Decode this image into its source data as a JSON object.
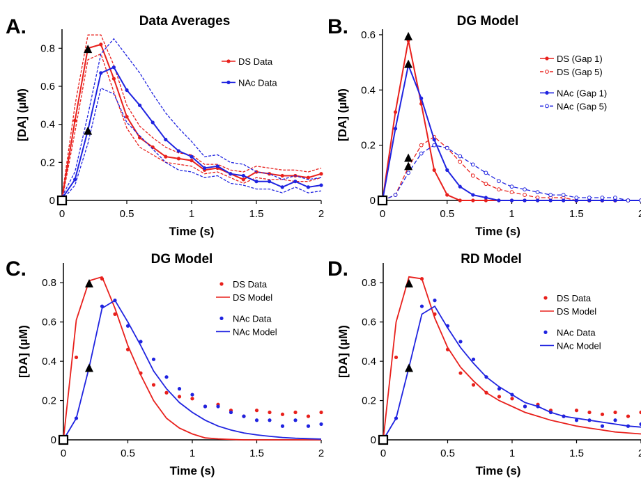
{
  "chart_data": [
    {
      "panel": "A.",
      "type": "line",
      "title": "Data Averages",
      "xlabel": "Time (s)",
      "ylabel": "[DA] (µM)",
      "xlim": [
        0,
        2
      ],
      "ylim": [
        0,
        0.9
      ],
      "xticks": [
        0,
        0.5,
        1,
        1.5,
        2
      ],
      "xtick_labels": [
        "0",
        "0.5",
        "1",
        "1.5",
        "2"
      ],
      "yticks": [
        0,
        0.2,
        0.4,
        0.6,
        0.8
      ],
      "ytick_labels": [
        "0",
        "0.2",
        "0.4",
        "0.6",
        "0.8"
      ],
      "grid": false,
      "legend_position": "top-right",
      "series": [
        {
          "name": "DS Data",
          "color": "#e8201c",
          "style": "solid-marker",
          "x": [
            0,
            0.1,
            0.2,
            0.3,
            0.4,
            0.5,
            0.6,
            0.7,
            0.8,
            0.9,
            1.0,
            1.1,
            1.2,
            1.3,
            1.4,
            1.5,
            1.6,
            1.7,
            1.8,
            1.9,
            2.0
          ],
          "y": [
            0.01,
            0.42,
            0.8,
            0.82,
            0.64,
            0.44,
            0.33,
            0.28,
            0.23,
            0.22,
            0.21,
            0.16,
            0.17,
            0.14,
            0.11,
            0.15,
            0.14,
            0.13,
            0.13,
            0.12,
            0.14
          ]
        },
        {
          "name": "DS upper",
          "color": "#e8201c",
          "style": "dashed",
          "x": [
            0,
            0.1,
            0.2,
            0.3,
            0.4,
            0.5,
            0.6,
            0.7,
            0.8,
            0.9,
            1.0,
            1.1,
            1.2,
            1.3,
            1.4,
            1.5,
            1.6,
            1.7,
            1.8,
            1.9,
            2.0
          ],
          "y": [
            0.02,
            0.5,
            0.87,
            0.87,
            0.71,
            0.5,
            0.39,
            0.33,
            0.28,
            0.25,
            0.24,
            0.19,
            0.19,
            0.16,
            0.15,
            0.18,
            0.17,
            0.16,
            0.16,
            0.15,
            0.17
          ]
        },
        {
          "name": "DS lower",
          "color": "#e8201c",
          "style": "dashed",
          "x": [
            0,
            0.1,
            0.2,
            0.3,
            0.4,
            0.5,
            0.6,
            0.7,
            0.8,
            0.9,
            1.0,
            1.1,
            1.2,
            1.3,
            1.4,
            1.5,
            1.6,
            1.7,
            1.8,
            1.9,
            2.0
          ],
          "y": [
            0.0,
            0.36,
            0.74,
            0.77,
            0.57,
            0.38,
            0.28,
            0.24,
            0.2,
            0.19,
            0.18,
            0.14,
            0.15,
            0.12,
            0.09,
            0.12,
            0.11,
            0.11,
            0.1,
            0.1,
            0.12
          ]
        },
        {
          "name": "NAc Data",
          "color": "#1f23e0",
          "style": "solid-marker",
          "x": [
            0,
            0.1,
            0.2,
            0.3,
            0.4,
            0.5,
            0.6,
            0.7,
            0.8,
            0.9,
            1.0,
            1.1,
            1.2,
            1.3,
            1.4,
            1.5,
            1.6,
            1.7,
            1.8,
            1.9,
            2.0
          ],
          "y": [
            0.01,
            0.11,
            0.37,
            0.67,
            0.7,
            0.58,
            0.5,
            0.41,
            0.32,
            0.26,
            0.23,
            0.17,
            0.18,
            0.14,
            0.13,
            0.1,
            0.1,
            0.07,
            0.1,
            0.07,
            0.08
          ]
        },
        {
          "name": "NAc upper",
          "color": "#1f23e0",
          "style": "dashed",
          "x": [
            0,
            0.1,
            0.2,
            0.3,
            0.4,
            0.5,
            0.6,
            0.7,
            0.8,
            0.9,
            1.0,
            1.1,
            1.2,
            1.3,
            1.4,
            1.5,
            1.6,
            1.7,
            1.8,
            1.9,
            2.0
          ],
          "y": [
            0.02,
            0.15,
            0.45,
            0.77,
            0.85,
            0.76,
            0.67,
            0.56,
            0.46,
            0.38,
            0.31,
            0.23,
            0.24,
            0.2,
            0.19,
            0.15,
            0.14,
            0.11,
            0.13,
            0.11,
            0.12
          ]
        },
        {
          "name": "NAc lower",
          "color": "#1f23e0",
          "style": "dashed",
          "x": [
            0,
            0.1,
            0.2,
            0.3,
            0.4,
            0.5,
            0.6,
            0.7,
            0.8,
            0.9,
            1.0,
            1.1,
            1.2,
            1.3,
            1.4,
            1.5,
            1.6,
            1.7,
            1.8,
            1.9,
            2.0
          ],
          "y": [
            0.0,
            0.08,
            0.3,
            0.59,
            0.56,
            0.41,
            0.34,
            0.27,
            0.2,
            0.16,
            0.15,
            0.12,
            0.13,
            0.09,
            0.08,
            0.06,
            0.06,
            0.04,
            0.07,
            0.04,
            0.05
          ]
        }
      ],
      "markers": [
        {
          "x": 0.2,
          "y": 0.79
        },
        {
          "x": 0.2,
          "y": 0.36
        }
      ],
      "origin_box": true
    },
    {
      "panel": "B.",
      "type": "line",
      "title": "DG Model",
      "xlabel": "Time (s)",
      "ylabel": "[DA] (µM)",
      "xlim": [
        0,
        2
      ],
      "ylim": [
        0,
        0.62
      ],
      "xticks": [
        0,
        0.5,
        1,
        1.5,
        2
      ],
      "xtick_labels": [
        "0",
        "0.5",
        "1",
        "1.5",
        "2"
      ],
      "yticks": [
        0,
        0.2,
        0.4,
        0.6
      ],
      "ytick_labels": [
        "0",
        "0.2",
        "0.4",
        "0.6"
      ],
      "grid": false,
      "legend_position": "top-right",
      "series": [
        {
          "name": "DS (Gap 1)",
          "color": "#e8201c",
          "style": "solid-marker",
          "x": [
            0,
            0.1,
            0.2,
            0.3,
            0.4,
            0.5,
            0.6,
            0.7,
            0.8,
            0.9,
            1.0,
            1.1,
            1.2,
            1.3,
            1.4,
            1.5,
            1.6,
            1.7,
            1.8,
            1.9,
            2.0
          ],
          "y": [
            0,
            0.32,
            0.58,
            0.35,
            0.11,
            0.02,
            0,
            0,
            0,
            0,
            0,
            0,
            0,
            0,
            0,
            0,
            0,
            0,
            0,
            0,
            0
          ]
        },
        {
          "name": "DS (Gap 5)",
          "color": "#e8201c",
          "style": "dashed-open",
          "x": [
            0,
            0.1,
            0.2,
            0.3,
            0.4,
            0.5,
            0.6,
            0.7,
            0.8,
            0.9,
            1.0,
            1.1,
            1.2,
            1.3,
            1.4,
            1.5,
            1.6,
            1.7,
            1.8,
            1.9,
            2.0
          ],
          "y": [
            0,
            0.02,
            0.12,
            0.2,
            0.23,
            0.19,
            0.14,
            0.09,
            0.06,
            0.04,
            0.03,
            0.02,
            0.01,
            0.01,
            0.01,
            0,
            0,
            0,
            0,
            0,
            0
          ]
        },
        {
          "name": "NAc (Gap 1)",
          "color": "#1f23e0",
          "style": "solid-marker",
          "x": [
            0,
            0.1,
            0.2,
            0.3,
            0.4,
            0.5,
            0.6,
            0.7,
            0.8,
            0.9,
            1.0,
            1.1,
            1.2,
            1.3,
            1.4,
            1.5,
            1.6,
            1.7,
            1.8,
            1.9,
            2.0
          ],
          "y": [
            0,
            0.26,
            0.49,
            0.37,
            0.22,
            0.11,
            0.05,
            0.02,
            0.01,
            0,
            0,
            0,
            0,
            0,
            0,
            0,
            0,
            0,
            0,
            0,
            0
          ]
        },
        {
          "name": "NAc (Gap 5)",
          "color": "#1f23e0",
          "style": "dashed-open",
          "x": [
            0,
            0.1,
            0.2,
            0.3,
            0.4,
            0.5,
            0.6,
            0.7,
            0.8,
            0.9,
            1.0,
            1.1,
            1.2,
            1.3,
            1.4,
            1.5,
            1.6,
            1.7,
            1.8,
            1.9,
            2.0
          ],
          "y": [
            0,
            0.02,
            0.1,
            0.17,
            0.2,
            0.19,
            0.16,
            0.13,
            0.1,
            0.07,
            0.05,
            0.04,
            0.03,
            0.02,
            0.02,
            0.01,
            0.01,
            0.01,
            0.01,
            0,
            0
          ]
        }
      ],
      "markers": [
        {
          "x": 0.2,
          "y": 0.59
        },
        {
          "x": 0.2,
          "y": 0.49
        },
        {
          "x": 0.2,
          "y": 0.15
        },
        {
          "x": 0.2,
          "y": 0.12
        }
      ],
      "origin_box": true
    },
    {
      "panel": "C.",
      "type": "scatter",
      "title": "DG Model",
      "xlabel": "Time (s)",
      "ylabel": "[DA] (µM)",
      "xlim": [
        0,
        2
      ],
      "ylim": [
        0,
        0.9
      ],
      "xticks": [
        0,
        0.5,
        1,
        1.5,
        2
      ],
      "xtick_labels": [
        "0",
        "0.5",
        "1",
        "1.5",
        "2"
      ],
      "yticks": [
        0,
        0.2,
        0.4,
        0.6,
        0.8
      ],
      "ytick_labels": [
        "0",
        "0.2",
        "0.4",
        "0.6",
        "0.8"
      ],
      "grid": false,
      "legend_position": "top-right",
      "series": [
        {
          "name": "DS Data",
          "color": "#e8201c",
          "style": "dots",
          "x": [
            0.1,
            0.2,
            0.3,
            0.4,
            0.5,
            0.6,
            0.7,
            0.8,
            0.9,
            1.0,
            1.1,
            1.2,
            1.3,
            1.4,
            1.5,
            1.6,
            1.7,
            1.8,
            1.9,
            2.0
          ],
          "y": [
            0.42,
            0.8,
            0.82,
            0.64,
            0.46,
            0.34,
            0.28,
            0.24,
            0.22,
            0.21,
            0.17,
            0.18,
            0.15,
            0.12,
            0.15,
            0.14,
            0.13,
            0.14,
            0.12,
            0.14
          ]
        },
        {
          "name": "DS Model",
          "color": "#e8201c",
          "style": "solid",
          "x": [
            0,
            0.1,
            0.2,
            0.3,
            0.4,
            0.5,
            0.6,
            0.7,
            0.8,
            0.9,
            1.0,
            1.1,
            1.2,
            1.3,
            1.4,
            1.5,
            1.6,
            1.7,
            1.8,
            1.9,
            2.0
          ],
          "y": [
            0,
            0.61,
            0.81,
            0.83,
            0.67,
            0.48,
            0.33,
            0.2,
            0.11,
            0.06,
            0.03,
            0.01,
            0.005,
            0.002,
            0,
            0,
            0,
            0,
            0,
            0,
            0
          ]
        },
        {
          "name": "NAc Data",
          "color": "#1f23e0",
          "style": "dots",
          "x": [
            0.1,
            0.2,
            0.3,
            0.4,
            0.5,
            0.6,
            0.7,
            0.8,
            0.9,
            1.0,
            1.1,
            1.2,
            1.3,
            1.4,
            1.5,
            1.6,
            1.7,
            1.8,
            1.9,
            2.0
          ],
          "y": [
            0.11,
            0.37,
            0.68,
            0.71,
            0.58,
            0.5,
            0.41,
            0.32,
            0.26,
            0.23,
            0.17,
            0.17,
            0.14,
            0.12,
            0.1,
            0.1,
            0.07,
            0.1,
            0.07,
            0.08
          ]
        },
        {
          "name": "NAc Model",
          "color": "#1f23e0",
          "style": "solid",
          "x": [
            0,
            0.1,
            0.2,
            0.3,
            0.4,
            0.5,
            0.6,
            0.7,
            0.8,
            0.9,
            1.0,
            1.1,
            1.2,
            1.3,
            1.4,
            1.5,
            1.6,
            1.7,
            1.8,
            1.9,
            2.0
          ],
          "y": [
            0,
            0.11,
            0.37,
            0.67,
            0.71,
            0.6,
            0.48,
            0.35,
            0.26,
            0.19,
            0.14,
            0.1,
            0.07,
            0.05,
            0.035,
            0.025,
            0.018,
            0.012,
            0.008,
            0.006,
            0.004
          ]
        }
      ],
      "markers": [
        {
          "x": 0.2,
          "y": 0.79
        },
        {
          "x": 0.2,
          "y": 0.36
        }
      ],
      "origin_box": true
    },
    {
      "panel": "D.",
      "type": "scatter",
      "title": "RD Model",
      "xlabel": "Time (s)",
      "ylabel": "[DA] (µM)",
      "xlim": [
        0,
        2
      ],
      "ylim": [
        0,
        0.9
      ],
      "xticks": [
        0,
        0.5,
        1,
        1.5,
        2
      ],
      "xtick_labels": [
        "0",
        "0.5",
        "1",
        "1.5",
        "2"
      ],
      "yticks": [
        0,
        0.2,
        0.4,
        0.6,
        0.8
      ],
      "ytick_labels": [
        "0",
        "0.2",
        "0.4",
        "0.6",
        "0.8"
      ],
      "grid": false,
      "legend_position": "top-right",
      "series": [
        {
          "name": "DS Data",
          "color": "#e8201c",
          "style": "dots",
          "x": [
            0.1,
            0.2,
            0.3,
            0.4,
            0.5,
            0.6,
            0.7,
            0.8,
            0.9,
            1.0,
            1.1,
            1.2,
            1.3,
            1.4,
            1.5,
            1.6,
            1.7,
            1.8,
            1.9,
            2.0
          ],
          "y": [
            0.42,
            0.8,
            0.82,
            0.64,
            0.46,
            0.34,
            0.28,
            0.24,
            0.22,
            0.21,
            0.17,
            0.18,
            0.15,
            0.12,
            0.15,
            0.14,
            0.13,
            0.14,
            0.12,
            0.14
          ]
        },
        {
          "name": "DS Model",
          "color": "#e8201c",
          "style": "solid",
          "x": [
            0,
            0.1,
            0.2,
            0.3,
            0.4,
            0.5,
            0.6,
            0.7,
            0.8,
            0.9,
            1.0,
            1.1,
            1.2,
            1.3,
            1.4,
            1.5,
            1.6,
            1.7,
            1.8,
            1.9,
            2.0
          ],
          "y": [
            0,
            0.6,
            0.83,
            0.82,
            0.62,
            0.47,
            0.37,
            0.3,
            0.24,
            0.2,
            0.17,
            0.14,
            0.12,
            0.1,
            0.085,
            0.07,
            0.06,
            0.05,
            0.04,
            0.035,
            0.03
          ]
        },
        {
          "name": "NAc Data",
          "color": "#1f23e0",
          "style": "dots",
          "x": [
            0.1,
            0.2,
            0.3,
            0.4,
            0.5,
            0.6,
            0.7,
            0.8,
            0.9,
            1.0,
            1.1,
            1.2,
            1.3,
            1.4,
            1.5,
            1.6,
            1.7,
            1.8,
            1.9,
            2.0
          ],
          "y": [
            0.11,
            0.37,
            0.68,
            0.71,
            0.58,
            0.5,
            0.41,
            0.32,
            0.26,
            0.23,
            0.17,
            0.17,
            0.14,
            0.12,
            0.1,
            0.1,
            0.07,
            0.1,
            0.07,
            0.08
          ]
        },
        {
          "name": "NAc Model",
          "color": "#1f23e0",
          "style": "solid",
          "x": [
            0,
            0.1,
            0.2,
            0.3,
            0.4,
            0.5,
            0.6,
            0.7,
            0.8,
            0.9,
            1.0,
            1.1,
            1.2,
            1.3,
            1.4,
            1.5,
            1.6,
            1.7,
            1.8,
            1.9,
            2.0
          ],
          "y": [
            0,
            0.11,
            0.37,
            0.64,
            0.68,
            0.57,
            0.47,
            0.39,
            0.32,
            0.27,
            0.23,
            0.19,
            0.17,
            0.14,
            0.12,
            0.11,
            0.1,
            0.09,
            0.08,
            0.07,
            0.065
          ]
        }
      ],
      "markers": [
        {
          "x": 0.2,
          "y": 0.79
        },
        {
          "x": 0.2,
          "y": 0.36
        }
      ],
      "origin_box": true
    }
  ]
}
